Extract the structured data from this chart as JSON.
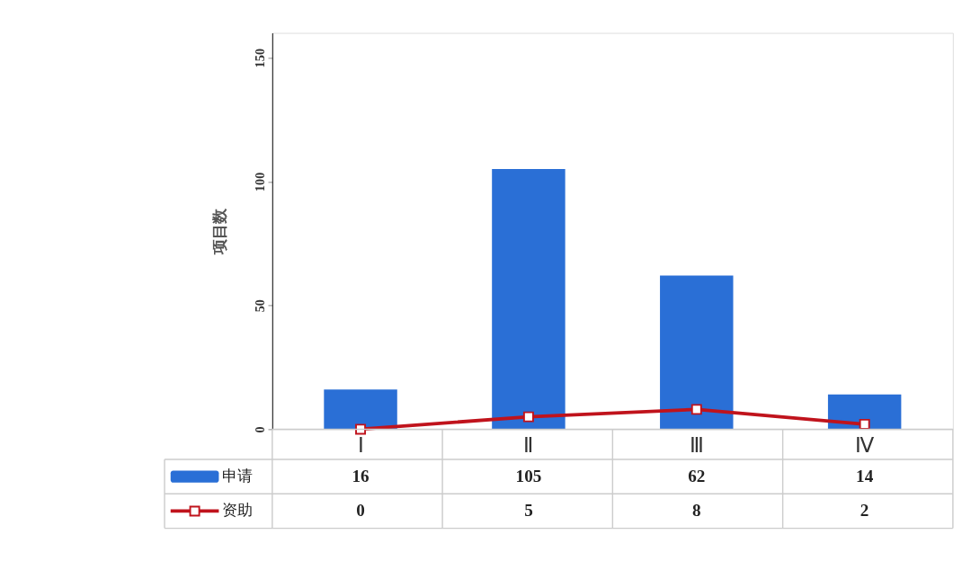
{
  "chart_data": {
    "type": "bar",
    "ylabel": "项目数",
    "categories": [
      "Ⅰ",
      "Ⅱ",
      "Ⅲ",
      "Ⅳ"
    ],
    "series": [
      {
        "name": "申请",
        "color": "#2a6fd6",
        "values": [
          16,
          105,
          62,
          14
        ]
      },
      {
        "name": "资助",
        "type": "line",
        "color": "#c0131c",
        "values": [
          0,
          5,
          8,
          2
        ]
      }
    ],
    "ylim": [
      0,
      160
    ],
    "yticks": [
      0,
      50,
      100,
      150
    ],
    "grid": false,
    "legend": "bottom left",
    "marker": "square",
    "line_style": "solid",
    "data_labels": true
  }
}
